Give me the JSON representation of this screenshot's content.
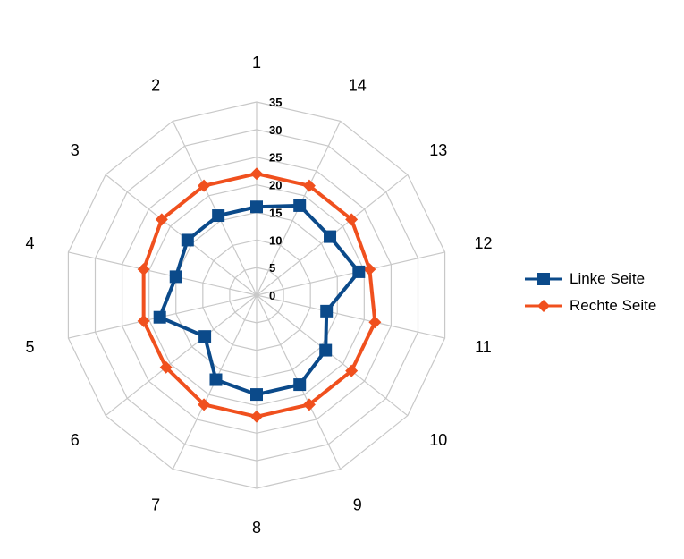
{
  "chart_data": {
    "type": "radar",
    "categories": [
      "1",
      "2",
      "3",
      "4",
      "5",
      "6",
      "7",
      "8",
      "9",
      "10",
      "11",
      "12",
      "13",
      "14"
    ],
    "r_ticks": [
      "0",
      "5",
      "10",
      "15",
      "20",
      "25",
      "30",
      "35"
    ],
    "r_range": [
      0,
      35
    ],
    "grid": true,
    "legend_position": "right",
    "series": [
      {
        "name": "Linke Seite",
        "color": "#0b4a8a",
        "marker": "square",
        "values": [
          16,
          16,
          16,
          15,
          18,
          12,
          17,
          18,
          18,
          16,
          13,
          19,
          17,
          18
        ]
      },
      {
        "name": "Rechte Seite",
        "color": "#f0501e",
        "marker": "diamond",
        "values": [
          22,
          22,
          22,
          21,
          21,
          21,
          22,
          22,
          22,
          22,
          22,
          21,
          22,
          22
        ]
      }
    ]
  }
}
